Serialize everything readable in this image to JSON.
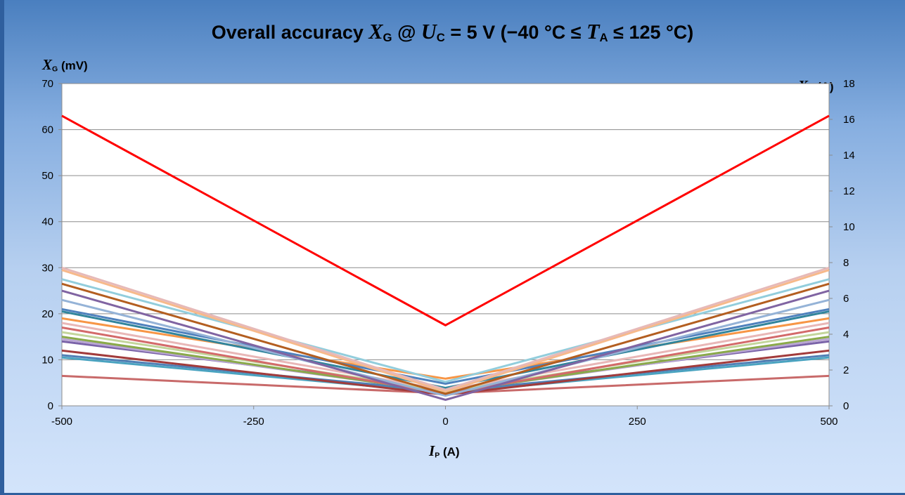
{
  "title": {
    "prefix": "Overall accuracy",
    "sym1": "X",
    "sub1": "G",
    "mid": " @ ",
    "sym2": "U",
    "sub2": "C",
    "cond": " = 5 V (−40 °C ≤ ",
    "sym3": "T",
    "sub3": "A",
    "suffix": " ≤ 125 °C)"
  },
  "y_left_label": {
    "sym": "X",
    "sub": "G",
    "unit": " (mV)"
  },
  "y_right_label": {
    "sym": "X",
    "sub": "G",
    "unit": " (A)"
  },
  "x_label": {
    "sym": "I",
    "sub": "P",
    "unit": " (A)"
  },
  "chart_data": {
    "type": "line",
    "x": [
      -500,
      0,
      500
    ],
    "x_ticks": [
      -500,
      -250,
      0,
      250,
      500
    ],
    "ylim_left": [
      0,
      70
    ],
    "ylim_right": [
      0,
      18
    ],
    "y_left_ticks": [
      0,
      10,
      20,
      30,
      40,
      50,
      60,
      70
    ],
    "y_right_ticks": [
      0,
      2,
      4,
      6,
      8,
      10,
      12,
      14,
      16,
      18
    ],
    "grid": true,
    "series": [
      {
        "values": [
          6.5,
          2.7,
          6.5
        ],
        "color": "#c86a6a"
      },
      {
        "values": [
          10.5,
          2.8,
          10.5
        ],
        "color": "#4aa3c0"
      },
      {
        "values": [
          11,
          3.2,
          11
        ],
        "color": "#4f7fb5"
      },
      {
        "values": [
          12,
          2.4,
          12
        ],
        "color": "#a23b3b"
      },
      {
        "values": [
          14,
          3.6,
          14
        ],
        "color": "#7a63a8"
      },
      {
        "values": [
          14.5,
          3.0,
          14.5
        ],
        "color": "#b9a6d4"
      },
      {
        "values": [
          15,
          2.9,
          15
        ],
        "color": "#8aaa4a"
      },
      {
        "values": [
          16,
          3.2,
          16
        ],
        "color": "#c3d59b"
      },
      {
        "values": [
          17,
          2.6,
          17
        ],
        "color": "#d36a6a"
      },
      {
        "values": [
          18,
          3.4,
          18
        ],
        "color": "#e8b7b7"
      },
      {
        "values": [
          19,
          5.9,
          19
        ],
        "color": "#f79646"
      },
      {
        "values": [
          20.5,
          3.9,
          20.5
        ],
        "color": "#31859c"
      },
      {
        "values": [
          21,
          4.8,
          21
        ],
        "color": "#4f81bd"
      },
      {
        "values": [
          23,
          2.2,
          23
        ],
        "color": "#95b3d7"
      },
      {
        "values": [
          25,
          1.3,
          25
        ],
        "color": "#8064a2"
      },
      {
        "values": [
          26.5,
          2.6,
          26.5
        ],
        "color": "#b35e20"
      },
      {
        "values": [
          27.5,
          5.2,
          27.5
        ],
        "color": "#92cddc"
      },
      {
        "values": [
          29.5,
          3.1,
          29.5
        ],
        "color": "#f7b98a"
      },
      {
        "values": [
          30,
          3.5,
          30
        ],
        "color": "#e6b9b8"
      },
      {
        "values": [
          63,
          17.5,
          63
        ],
        "color": "#ff0000",
        "width": 3
      }
    ]
  }
}
